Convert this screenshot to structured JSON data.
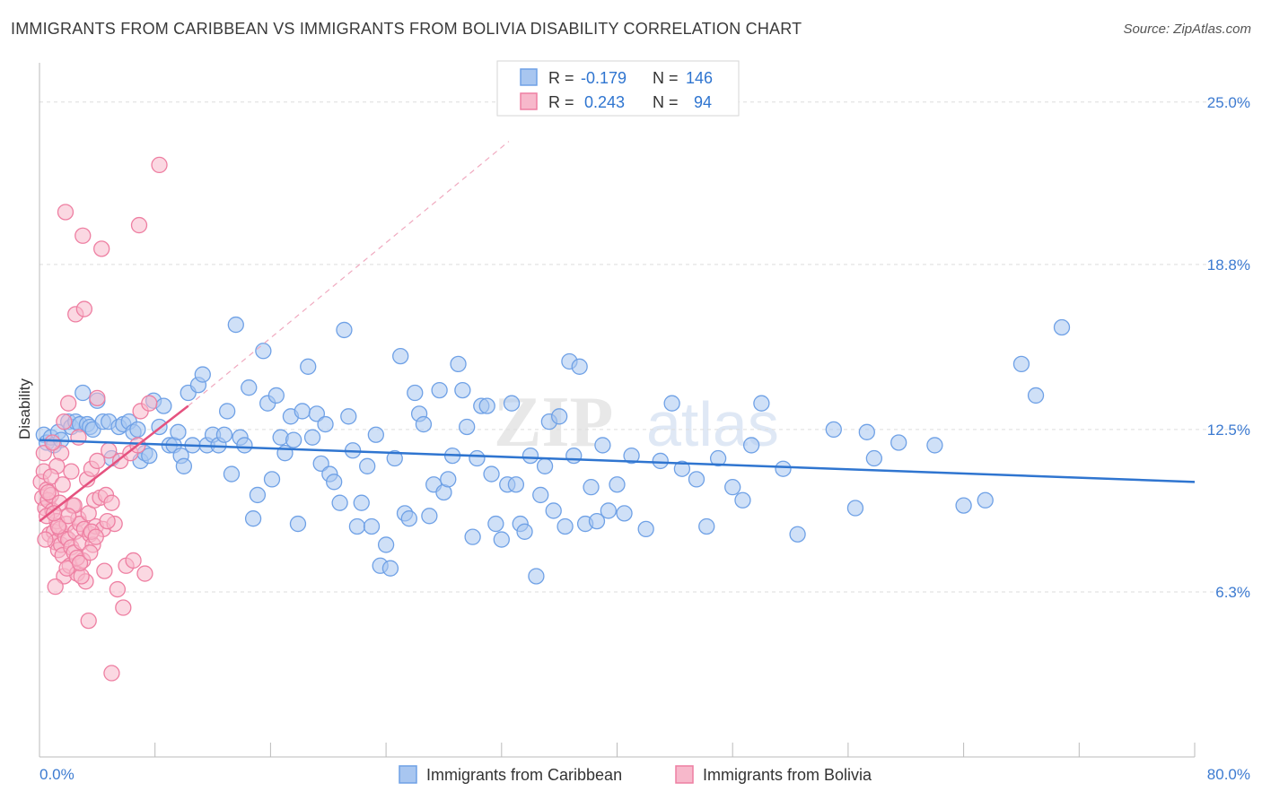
{
  "header": {
    "title": "IMMIGRANTS FROM CARIBBEAN VS IMMIGRANTS FROM BOLIVIA DISABILITY CORRELATION CHART",
    "source": "Source: ZipAtlas.com"
  },
  "watermark": {
    "zip": "ZIP",
    "atlas": "atlas"
  },
  "colors": {
    "blue": "#6fa1e6",
    "blue_fill": "#a8c6f0",
    "blue_line": "#2f75d0",
    "pink": "#ee7fa2",
    "pink_fill": "#f7b8cb",
    "pink_line": "#e5527f",
    "axis_label": "#3d7bd1",
    "grid": "#dddddd"
  },
  "chart_data": {
    "type": "scatter",
    "ylabel": "Disability",
    "xlim": [
      0,
      80
    ],
    "ylim": [
      0,
      26.5
    ],
    "x_tick_labels": {
      "min": "0.0%",
      "max": "80.0%"
    },
    "y_ticks": [
      {
        "value": 25.0,
        "label": "25.0%"
      },
      {
        "value": 18.8,
        "label": "18.8%"
      },
      {
        "value": 12.5,
        "label": "12.5%"
      },
      {
        "value": 6.3,
        "label": "6.3%"
      }
    ],
    "grid": true,
    "legend_top": [
      {
        "swatch": "blue",
        "r_label": "R =",
        "r_value": "-0.179",
        "n_label": "N =",
        "n_value": "146"
      },
      {
        "swatch": "pink",
        "r_label": "R =",
        "r_value": "0.243",
        "n_label": "N =",
        "n_value": "94"
      }
    ],
    "legend_bottom": [
      {
        "swatch": "blue",
        "label": "Immigrants from Caribbean"
      },
      {
        "swatch": "pink",
        "label": "Immigrants from Bolivia"
      }
    ],
    "series": [
      {
        "name": "Immigrants from Caribbean",
        "color": "blue",
        "trend": {
          "x0": 0,
          "y0": 12.1,
          "x1": 80,
          "y1": 10.5
        },
        "points": [
          [
            0.3,
            12.3
          ],
          [
            0.5,
            12.0
          ],
          [
            0.8,
            12.2
          ],
          [
            1.0,
            11.9
          ],
          [
            1.3,
            12.4
          ],
          [
            1.5,
            12.1
          ],
          [
            2.0,
            12.8
          ],
          [
            2.2,
            12.6
          ],
          [
            2.5,
            12.8
          ],
          [
            2.8,
            12.7
          ],
          [
            3.0,
            13.9
          ],
          [
            3.3,
            12.7
          ],
          [
            3.5,
            12.6
          ],
          [
            3.7,
            12.5
          ],
          [
            4.0,
            13.6
          ],
          [
            4.4,
            12.8
          ],
          [
            4.8,
            12.8
          ],
          [
            5.0,
            11.4
          ],
          [
            5.5,
            12.6
          ],
          [
            5.8,
            12.7
          ],
          [
            6.2,
            12.8
          ],
          [
            6.5,
            12.4
          ],
          [
            6.8,
            12.5
          ],
          [
            7.0,
            11.3
          ],
          [
            7.3,
            11.6
          ],
          [
            7.6,
            11.5
          ],
          [
            7.9,
            13.6
          ],
          [
            8.3,
            12.6
          ],
          [
            8.6,
            13.4
          ],
          [
            9.0,
            11.9
          ],
          [
            9.3,
            11.9
          ],
          [
            9.6,
            12.4
          ],
          [
            9.8,
            11.5
          ],
          [
            10.0,
            11.1
          ],
          [
            10.3,
            13.9
          ],
          [
            10.6,
            11.9
          ],
          [
            11.0,
            14.2
          ],
          [
            11.3,
            14.6
          ],
          [
            11.6,
            11.9
          ],
          [
            12.0,
            12.3
          ],
          [
            12.4,
            11.9
          ],
          [
            12.8,
            12.3
          ],
          [
            13.0,
            13.2
          ],
          [
            13.3,
            10.8
          ],
          [
            13.6,
            16.5
          ],
          [
            13.9,
            12.2
          ],
          [
            14.2,
            11.9
          ],
          [
            14.5,
            14.1
          ],
          [
            14.8,
            9.1
          ],
          [
            15.1,
            10.0
          ],
          [
            15.5,
            15.5
          ],
          [
            15.8,
            13.5
          ],
          [
            16.1,
            10.6
          ],
          [
            16.4,
            13.8
          ],
          [
            16.7,
            12.2
          ],
          [
            17.0,
            11.6
          ],
          [
            17.4,
            13.0
          ],
          [
            17.6,
            12.1
          ],
          [
            17.9,
            8.9
          ],
          [
            18.2,
            13.2
          ],
          [
            18.6,
            14.9
          ],
          [
            18.9,
            12.2
          ],
          [
            19.2,
            13.1
          ],
          [
            19.5,
            11.2
          ],
          [
            19.8,
            12.7
          ],
          [
            20.1,
            10.8
          ],
          [
            20.4,
            10.5
          ],
          [
            20.8,
            9.7
          ],
          [
            21.1,
            16.3
          ],
          [
            21.4,
            13.0
          ],
          [
            21.7,
            11.7
          ],
          [
            22.0,
            8.8
          ],
          [
            22.3,
            9.7
          ],
          [
            22.7,
            11.1
          ],
          [
            23.0,
            8.8
          ],
          [
            23.3,
            12.3
          ],
          [
            23.6,
            7.3
          ],
          [
            24.0,
            8.1
          ],
          [
            24.3,
            7.2
          ],
          [
            24.6,
            11.4
          ],
          [
            25.0,
            15.3
          ],
          [
            25.3,
            9.3
          ],
          [
            25.6,
            9.1
          ],
          [
            26.0,
            13.9
          ],
          [
            26.3,
            13.1
          ],
          [
            26.6,
            12.7
          ],
          [
            27.0,
            9.2
          ],
          [
            27.3,
            10.4
          ],
          [
            27.7,
            14.0
          ],
          [
            28.0,
            10.1
          ],
          [
            28.3,
            10.6
          ],
          [
            28.6,
            11.5
          ],
          [
            29.0,
            15.0
          ],
          [
            29.3,
            14.0
          ],
          [
            29.6,
            12.6
          ],
          [
            30.0,
            8.4
          ],
          [
            30.3,
            11.4
          ],
          [
            30.6,
            13.4
          ],
          [
            31.0,
            13.4
          ],
          [
            31.3,
            10.8
          ],
          [
            31.6,
            8.9
          ],
          [
            32.0,
            8.3
          ],
          [
            32.4,
            10.4
          ],
          [
            32.7,
            13.5
          ],
          [
            33.0,
            10.4
          ],
          [
            33.3,
            8.9
          ],
          [
            33.6,
            8.6
          ],
          [
            34.0,
            11.5
          ],
          [
            34.4,
            6.9
          ],
          [
            34.7,
            10.0
          ],
          [
            35.0,
            11.1
          ],
          [
            35.3,
            12.8
          ],
          [
            35.6,
            9.4
          ],
          [
            36.0,
            13.0
          ],
          [
            36.4,
            8.8
          ],
          [
            36.7,
            15.1
          ],
          [
            37.0,
            11.5
          ],
          [
            37.4,
            14.9
          ],
          [
            37.8,
            8.9
          ],
          [
            38.2,
            10.3
          ],
          [
            38.6,
            9.0
          ],
          [
            39.0,
            11.9
          ],
          [
            39.4,
            9.4
          ],
          [
            40.0,
            10.4
          ],
          [
            40.5,
            9.3
          ],
          [
            41.0,
            11.5
          ],
          [
            42.0,
            8.7
          ],
          [
            43.0,
            11.3
          ],
          [
            43.8,
            13.5
          ],
          [
            44.5,
            11.0
          ],
          [
            45.5,
            10.6
          ],
          [
            46.2,
            8.8
          ],
          [
            47.0,
            11.4
          ],
          [
            48.0,
            10.3
          ],
          [
            48.7,
            9.8
          ],
          [
            49.3,
            11.9
          ],
          [
            50.0,
            13.5
          ],
          [
            51.5,
            11.0
          ],
          [
            52.5,
            8.5
          ],
          [
            55.0,
            12.5
          ],
          [
            56.5,
            9.5
          ],
          [
            57.3,
            12.4
          ],
          [
            57.8,
            11.4
          ],
          [
            59.5,
            12.0
          ],
          [
            62.0,
            11.9
          ],
          [
            64.0,
            9.6
          ],
          [
            65.5,
            9.8
          ],
          [
            68.0,
            15.0
          ],
          [
            69.0,
            13.8
          ],
          [
            70.8,
            16.4
          ]
        ]
      },
      {
        "name": "Immigrants from Bolivia",
        "color": "pink",
        "trend": {
          "x0": 0,
          "y0": 9.0,
          "x1": 10.3,
          "y1": 13.4
        },
        "trend_extension": {
          "x0": 10.3,
          "y0": 13.4,
          "x1": 32.5,
          "y1": 23.5
        },
        "points": [
          [
            0.1,
            10.5
          ],
          [
            0.2,
            9.9
          ],
          [
            0.3,
            10.9
          ],
          [
            0.4,
            9.5
          ],
          [
            0.5,
            10.2
          ],
          [
            0.6,
            9.8
          ],
          [
            0.7,
            8.5
          ],
          [
            0.8,
            10.0
          ],
          [
            0.9,
            9.4
          ],
          [
            1.0,
            8.6
          ],
          [
            1.1,
            8.2
          ],
          [
            1.2,
            9.0
          ],
          [
            1.3,
            7.9
          ],
          [
            1.4,
            8.7
          ],
          [
            1.5,
            8.1
          ],
          [
            1.6,
            7.7
          ],
          [
            1.7,
            6.9
          ],
          [
            1.8,
            8.4
          ],
          [
            1.9,
            8.9
          ],
          [
            2.0,
            8.3
          ],
          [
            2.1,
            7.3
          ],
          [
            2.2,
            8.0
          ],
          [
            2.3,
            9.6
          ],
          [
            2.4,
            7.8
          ],
          [
            2.5,
            8.6
          ],
          [
            2.6,
            7.0
          ],
          [
            2.7,
            9.1
          ],
          [
            2.8,
            8.9
          ],
          [
            2.9,
            8.2
          ],
          [
            3.0,
            7.5
          ],
          [
            3.1,
            8.7
          ],
          [
            3.2,
            6.7
          ],
          [
            3.3,
            10.6
          ],
          [
            3.4,
            9.3
          ],
          [
            3.5,
            8.5
          ],
          [
            3.6,
            11.0
          ],
          [
            3.7,
            8.1
          ],
          [
            3.8,
            9.8
          ],
          [
            3.9,
            8.8
          ],
          [
            4.0,
            11.3
          ],
          [
            4.2,
            9.9
          ],
          [
            4.4,
            8.7
          ],
          [
            4.6,
            10.0
          ],
          [
            4.8,
            11.7
          ],
          [
            5.0,
            9.7
          ],
          [
            5.2,
            8.9
          ],
          [
            5.4,
            6.4
          ],
          [
            5.6,
            11.3
          ],
          [
            5.8,
            5.7
          ],
          [
            6.0,
            7.3
          ],
          [
            6.3,
            11.6
          ],
          [
            6.5,
            7.5
          ],
          [
            6.8,
            11.9
          ],
          [
            7.0,
            13.2
          ],
          [
            7.3,
            7.0
          ],
          [
            7.6,
            13.5
          ],
          [
            8.3,
            22.6
          ],
          [
            1.8,
            20.8
          ],
          [
            3.0,
            19.9
          ],
          [
            4.3,
            19.4
          ],
          [
            6.9,
            20.3
          ],
          [
            2.5,
            16.9
          ],
          [
            3.1,
            17.1
          ],
          [
            2.0,
            13.5
          ],
          [
            4.0,
            13.7
          ],
          [
            2.7,
            12.2
          ],
          [
            1.5,
            11.6
          ],
          [
            1.2,
            11.1
          ],
          [
            0.8,
            10.7
          ],
          [
            1.6,
            10.4
          ],
          [
            0.5,
            9.2
          ],
          [
            2.4,
            9.6
          ],
          [
            1.9,
            7.2
          ],
          [
            2.9,
            6.9
          ],
          [
            3.4,
            5.2
          ],
          [
            5.0,
            3.2
          ],
          [
            1.1,
            6.5
          ],
          [
            2.6,
            7.6
          ],
          [
            3.6,
            8.6
          ],
          [
            1.4,
            9.7
          ],
          [
            0.3,
            11.6
          ],
          [
            0.9,
            12.0
          ],
          [
            1.7,
            12.8
          ],
          [
            2.2,
            10.9
          ],
          [
            3.9,
            8.4
          ],
          [
            4.7,
            9.0
          ],
          [
            0.6,
            10.1
          ],
          [
            1.3,
            8.8
          ],
          [
            2.0,
            9.2
          ],
          [
            2.8,
            7.4
          ],
          [
            3.5,
            7.8
          ],
          [
            4.5,
            7.1
          ],
          [
            1.0,
            9.3
          ],
          [
            0.4,
            8.3
          ]
        ]
      }
    ]
  }
}
